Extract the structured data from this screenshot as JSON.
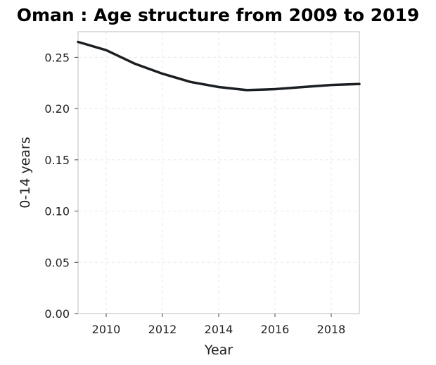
{
  "chart_data": {
    "type": "line",
    "title": "Oman : Age structure from 2009 to 2019",
    "xlabel": "Year",
    "ylabel": "0-14 years",
    "xlim": [
      2009,
      2019
    ],
    "ylim": [
      0,
      0.275
    ],
    "xticks": [
      2010,
      2012,
      2014,
      2016,
      2018
    ],
    "yticks": [
      "0.00",
      "0.05",
      "0.10",
      "0.15",
      "0.20",
      "0.25"
    ],
    "grid": true,
    "series": [
      {
        "color": "#1b1f23",
        "x": [
          2009,
          2010,
          2011,
          2012,
          2013,
          2014,
          2015,
          2016,
          2017,
          2018,
          2019
        ],
        "y": [
          0.265,
          0.257,
          0.244,
          0.234,
          0.226,
          0.221,
          0.218,
          0.219,
          0.221,
          0.223,
          0.224
        ]
      }
    ]
  }
}
